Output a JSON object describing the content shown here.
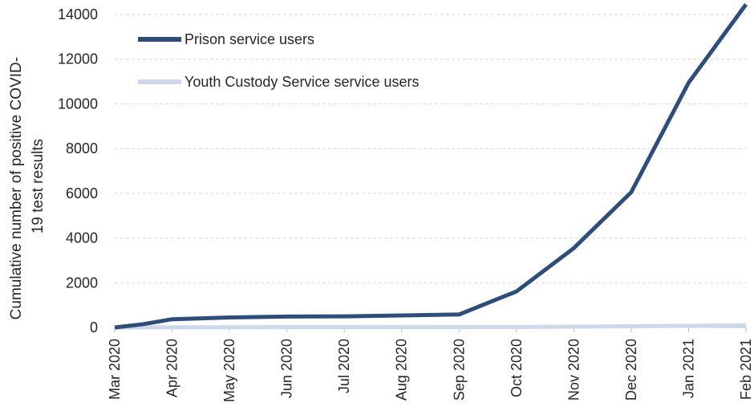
{
  "chart_data": {
    "type": "line",
    "title": "",
    "xlabel": "",
    "ylabel": "Cumulative number of positive  COVID-19 test results",
    "ylabel_lines": [
      "Cumulative number of positive  COVID-",
      "19 test results"
    ],
    "ylim": [
      0,
      14000
    ],
    "yticks": [
      0,
      2000,
      4000,
      6000,
      8000,
      10000,
      12000,
      14000
    ],
    "ytick_labels": [
      "0",
      "2000",
      "4000",
      "6000",
      "8000",
      "10000",
      "12000",
      "14000"
    ],
    "x_tick_labels": [
      "Mar 2020",
      "Apr 2020",
      "May 2020",
      "Jun 2020",
      "Jul 2020",
      "Aug 2020",
      "Sep 2020",
      "Oct 2020",
      "Nov 2020",
      "Dec 2020",
      "Jan 2021",
      "Feb 2021"
    ],
    "x_points": [
      "Mar 2020",
      "mid Mar 2020",
      "Apr 2020",
      "May 2020",
      "Jun 2020",
      "Jul 2020",
      "Aug 2020",
      "Sep 2020",
      "Oct 2020",
      "Nov 2020",
      "Dec 2020",
      "Jan 2021",
      "Feb 2021"
    ],
    "grid": true,
    "legend_position": "top-left",
    "series": [
      {
        "name": "Prison service users",
        "color": "#2f4d7a",
        "values": [
          0,
          150,
          370,
          450,
          490,
          500,
          540,
          580,
          1610,
          3550,
          6050,
          10950,
          14450
        ]
      },
      {
        "name": "Youth Custody Service service users",
        "color": "#cdd8ea",
        "values": [
          0,
          5,
          10,
          12,
          14,
          15,
          16,
          18,
          22,
          35,
          55,
          75,
          100
        ]
      }
    ]
  }
}
